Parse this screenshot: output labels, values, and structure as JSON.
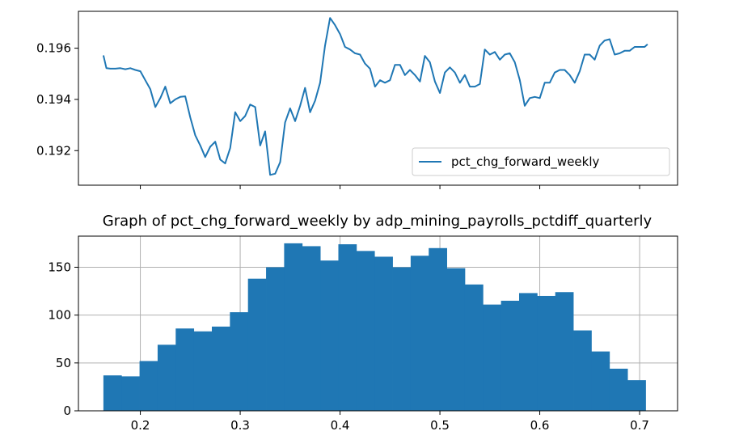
{
  "colors": {
    "series": "#1f77b4",
    "grid": "#b0b0b0",
    "axis": "#000000",
    "legend_border": "#cccccc"
  },
  "chart_data": [
    {
      "type": "line",
      "title": "",
      "xlabel": "",
      "ylabel": "",
      "xlim": [
        0.138,
        0.738
      ],
      "ylim": [
        0.19065,
        0.19744
      ],
      "yticks": [
        0.192,
        0.194,
        0.196
      ],
      "ytick_labels": [
        "0.192",
        "0.194",
        "0.196"
      ],
      "xticks": [
        0.2,
        0.3,
        0.4,
        0.5,
        0.6,
        0.7
      ],
      "grid": false,
      "legend_location": "lower right",
      "series": [
        {
          "name": "pct_chg_forward_weekly",
          "x": [
            0.163,
            0.166,
            0.17,
            0.175,
            0.18,
            0.185,
            0.19,
            0.195,
            0.2,
            0.205,
            0.21,
            0.215,
            0.22,
            0.225,
            0.23,
            0.235,
            0.24,
            0.245,
            0.25,
            0.255,
            0.26,
            0.265,
            0.27,
            0.275,
            0.28,
            0.285,
            0.29,
            0.295,
            0.3,
            0.305,
            0.31,
            0.315,
            0.32,
            0.325,
            0.33,
            0.335,
            0.34,
            0.345,
            0.35,
            0.355,
            0.36,
            0.365,
            0.37,
            0.375,
            0.38,
            0.385,
            0.39,
            0.395,
            0.4,
            0.405,
            0.41,
            0.415,
            0.42,
            0.425,
            0.43,
            0.435,
            0.44,
            0.445,
            0.45,
            0.455,
            0.46,
            0.465,
            0.47,
            0.475,
            0.48,
            0.485,
            0.49,
            0.495,
            0.5,
            0.505,
            0.51,
            0.515,
            0.52,
            0.525,
            0.53,
            0.535,
            0.54,
            0.545,
            0.55,
            0.555,
            0.56,
            0.565,
            0.57,
            0.575,
            0.58,
            0.585,
            0.59,
            0.595,
            0.6,
            0.605,
            0.61,
            0.615,
            0.62,
            0.625,
            0.63,
            0.635,
            0.64,
            0.645,
            0.65,
            0.655,
            0.66,
            0.665,
            0.67,
            0.675,
            0.68,
            0.685,
            0.69,
            0.695,
            0.7,
            0.705,
            0.708
          ],
          "y": [
            0.19572,
            0.19522,
            0.1952,
            0.1952,
            0.19522,
            0.19518,
            0.19522,
            0.19515,
            0.1951,
            0.19475,
            0.1944,
            0.1937,
            0.19405,
            0.1945,
            0.19385,
            0.194,
            0.1941,
            0.19412,
            0.1933,
            0.1926,
            0.1922,
            0.19175,
            0.19215,
            0.19235,
            0.19165,
            0.1915,
            0.1921,
            0.1935,
            0.19315,
            0.19335,
            0.1938,
            0.1937,
            0.1922,
            0.19275,
            0.19105,
            0.1911,
            0.19155,
            0.1931,
            0.19365,
            0.19315,
            0.19375,
            0.19445,
            0.1935,
            0.19395,
            0.19465,
            0.1961,
            0.19718,
            0.1969,
            0.19655,
            0.19605,
            0.19595,
            0.1958,
            0.19575,
            0.1954,
            0.1952,
            0.1945,
            0.19475,
            0.19465,
            0.19475,
            0.19535,
            0.19535,
            0.19495,
            0.19515,
            0.19495,
            0.1947,
            0.1957,
            0.19545,
            0.1947,
            0.19425,
            0.19505,
            0.19525,
            0.19505,
            0.19465,
            0.19495,
            0.1945,
            0.1945,
            0.1946,
            0.19595,
            0.19575,
            0.19585,
            0.19555,
            0.19575,
            0.1958,
            0.19545,
            0.19475,
            0.19375,
            0.19405,
            0.1941,
            0.19405,
            0.19465,
            0.19465,
            0.19505,
            0.19515,
            0.19515,
            0.19495,
            0.19465,
            0.1951,
            0.19575,
            0.19575,
            0.19555,
            0.1961,
            0.1963,
            0.19635,
            0.19575,
            0.1958,
            0.1959,
            0.1959,
            0.19605,
            0.19605,
            0.19605,
            0.19615
          ]
        }
      ]
    },
    {
      "type": "bar",
      "title": "Graph of pct_chg_forward_weekly by adp_mining_payrolls_pctdiff_quarterly",
      "xlabel": "",
      "ylabel": "",
      "xlim": [
        0.138,
        0.738
      ],
      "ylim": [
        0,
        182.5
      ],
      "xticks": [
        0.2,
        0.3,
        0.4,
        0.5,
        0.6,
        0.7
      ],
      "xtick_labels": [
        "0.2",
        "0.3",
        "0.4",
        "0.5",
        "0.6",
        "0.7"
      ],
      "yticks": [
        0,
        50,
        100,
        150
      ],
      "ytick_labels": [
        "0",
        "50",
        "100",
        "150"
      ],
      "grid": true,
      "bin_edges": [
        0.163,
        0.1811,
        0.1992,
        0.2173,
        0.2354,
        0.2535,
        0.2716,
        0.2897,
        0.3078,
        0.3259,
        0.344,
        0.3621,
        0.3802,
        0.3983,
        0.4164,
        0.4345,
        0.4526,
        0.4707,
        0.4888,
        0.5069,
        0.525,
        0.5431,
        0.5612,
        0.5793,
        0.5974,
        0.6155,
        0.6336,
        0.6517,
        0.6698,
        0.6879,
        0.706
      ],
      "values": [
        37,
        36,
        52,
        69,
        86,
        83,
        88,
        103,
        138,
        150,
        175,
        172,
        157,
        174,
        167,
        161,
        150,
        162,
        170,
        149,
        132,
        111,
        115,
        123,
        120,
        124,
        84,
        62,
        44,
        32
      ]
    }
  ]
}
